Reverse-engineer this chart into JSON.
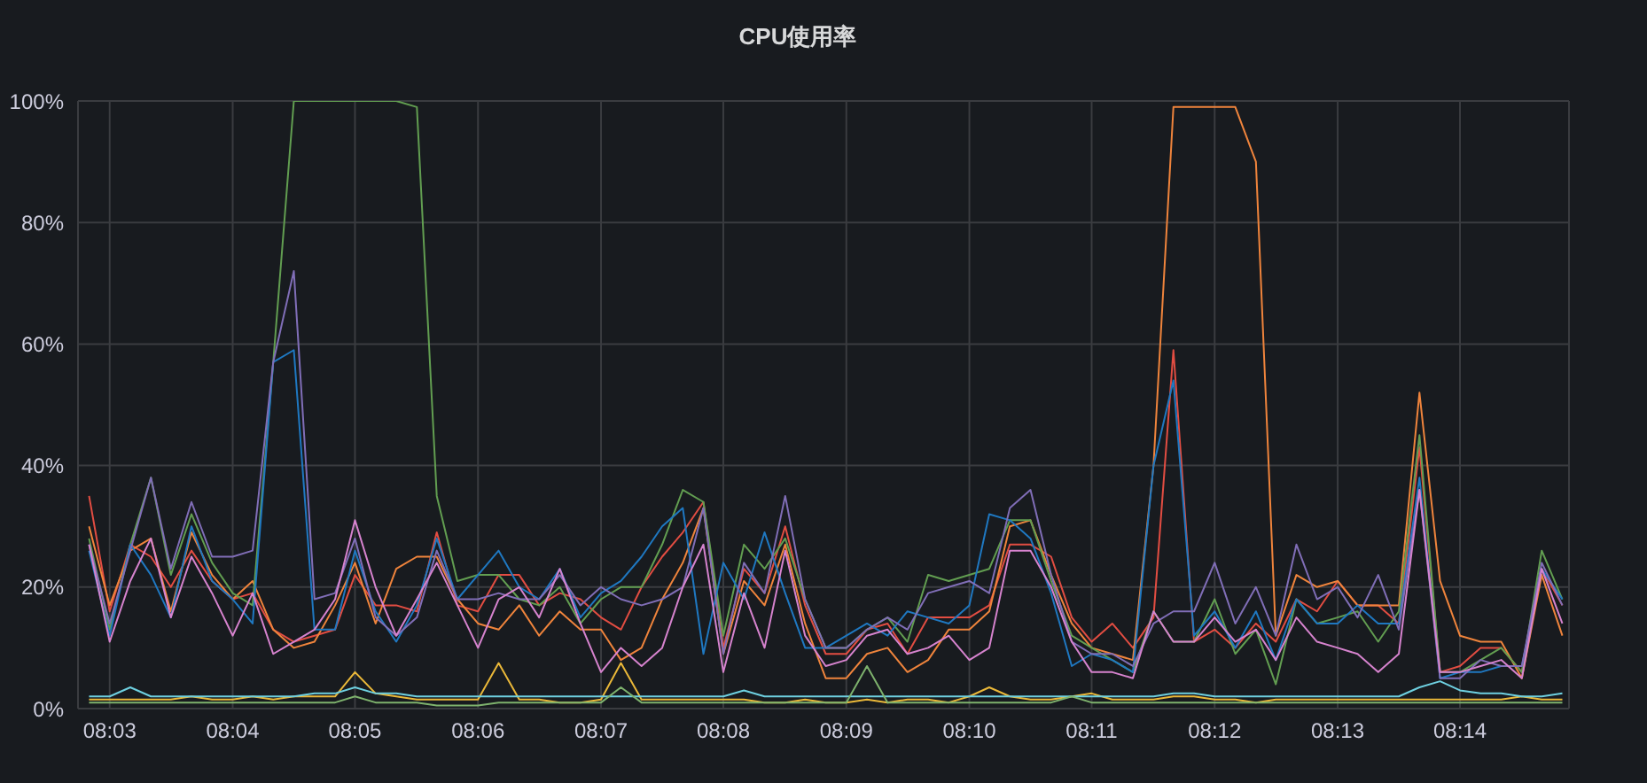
{
  "chart_data": {
    "type": "line",
    "title": "CPU使用率",
    "x": [
      8.0472,
      8.05,
      8.0528,
      8.0556,
      8.0583,
      8.0611,
      8.0639,
      8.0667,
      8.0694,
      8.0722,
      8.075,
      8.0778,
      8.0806,
      8.0833,
      8.0861,
      8.0889,
      8.0917,
      8.0944,
      8.0972,
      8.1,
      8.1028,
      8.1056,
      8.1083,
      8.1111,
      8.1139,
      8.1167,
      8.1194,
      8.1222,
      8.125,
      8.1278,
      8.1306,
      8.1333,
      8.1361,
      8.1389,
      8.1417,
      8.1444,
      8.1472,
      8.15,
      8.1528,
      8.1556,
      8.1583,
      8.1611,
      8.1639,
      8.1667,
      8.1694,
      8.1722,
      8.175,
      8.1778,
      8.1806,
      8.1833,
      8.1861,
      8.1889,
      8.1917,
      8.1944,
      8.1972,
      8.2,
      8.2028,
      8.2056,
      8.2083,
      8.2111,
      8.2139,
      8.2167,
      8.2194,
      8.2222,
      8.225,
      8.2278,
      8.2306,
      8.2333,
      8.2361,
      8.2389,
      8.2417,
      8.2444,
      8.2472
    ],
    "series": [
      {
        "color": "#e24d42",
        "values": [
          35,
          16,
          27,
          25,
          20,
          26,
          21,
          18,
          19,
          13,
          11,
          12,
          13,
          22,
          17,
          17,
          16,
          29,
          17,
          16,
          22,
          22,
          17,
          19,
          18,
          15,
          13,
          20,
          25,
          29,
          34,
          10,
          23,
          19,
          30,
          17,
          9,
          9,
          13,
          14,
          9,
          15,
          15,
          15,
          17,
          27,
          27,
          25,
          15,
          11,
          14,
          10,
          15,
          59,
          11,
          13,
          10,
          14,
          11,
          18,
          16,
          21,
          17,
          17,
          14,
          43,
          6,
          7,
          10,
          10,
          6,
          23,
          17
        ]
      },
      {
        "color": "#ef843c",
        "values": [
          30,
          17,
          26,
          28,
          16,
          29,
          22,
          18,
          21,
          13,
          10,
          11,
          17,
          24,
          14,
          23,
          25,
          25,
          18,
          14,
          13,
          17,
          12,
          16,
          13,
          13,
          8,
          10,
          18,
          24,
          33,
          9,
          21,
          17,
          27,
          14,
          5,
          5,
          9,
          10,
          6,
          8,
          13,
          13,
          16,
          30,
          31,
          22,
          14,
          10,
          9,
          8,
          40,
          99,
          99,
          99,
          99,
          90,
          12,
          22,
          20,
          21,
          17,
          17,
          17,
          52,
          21,
          12,
          11,
          11,
          5,
          22,
          12
        ]
      },
      {
        "color": "#629e51",
        "values": [
          28,
          13,
          27,
          38,
          22,
          32,
          24,
          19,
          17,
          57,
          100,
          100,
          100,
          100,
          100,
          100,
          99,
          35,
          21,
          22,
          22,
          18,
          17,
          20,
          14,
          18,
          20,
          20,
          27,
          36,
          34,
          12,
          27,
          23,
          28,
          18,
          10,
          10,
          13,
          15,
          11,
          22,
          21,
          22,
          23,
          31,
          31,
          21,
          12,
          10,
          8,
          6,
          16,
          11,
          11,
          18,
          9,
          13,
          4,
          18,
          14,
          15,
          16,
          11,
          16,
          45,
          6,
          6,
          8,
          10,
          6,
          26,
          18
        ]
      },
      {
        "color": "#1f78c1",
        "values": [
          26,
          12,
          27,
          22,
          15,
          30,
          21,
          18,
          14,
          57,
          59,
          13,
          13,
          26,
          16,
          11,
          17,
          28,
          18,
          22,
          26,
          20,
          18,
          23,
          15,
          19,
          21,
          25,
          30,
          33,
          9,
          24,
          18,
          29,
          19,
          10,
          10,
          12,
          14,
          12,
          16,
          15,
          14,
          17,
          32,
          31,
          28,
          19,
          7,
          9,
          8,
          6,
          40,
          54,
          12,
          16,
          10,
          16,
          8,
          18,
          14,
          14,
          17,
          14,
          14,
          38,
          5,
          6,
          6,
          7,
          7,
          23,
          18
        ]
      },
      {
        "color": "#806eb7",
        "values": [
          27,
          14,
          26,
          38,
          23,
          34,
          25,
          25,
          26,
          57,
          72,
          18,
          19,
          28,
          15,
          12,
          15,
          26,
          18,
          18,
          19,
          18,
          18,
          22,
          17,
          20,
          18,
          17,
          18,
          20,
          33,
          9,
          24,
          19,
          35,
          18,
          10,
          10,
          13,
          15,
          13,
          19,
          20,
          21,
          19,
          33,
          36,
          22,
          11,
          9,
          9,
          7,
          14,
          16,
          16,
          24,
          14,
          20,
          12,
          27,
          18,
          20,
          15,
          22,
          13,
          36,
          5,
          5,
          8,
          7,
          7,
          24,
          17
        ]
      },
      {
        "color": "#d683ce",
        "values": [
          27,
          11,
          21,
          28,
          15,
          25,
          19,
          12,
          19,
          9,
          11,
          13,
          18,
          31,
          20,
          12,
          18,
          24,
          17,
          10,
          18,
          20,
          15,
          23,
          14,
          6,
          10,
          7,
          10,
          20,
          27,
          6,
          19,
          10,
          26,
          12,
          7,
          8,
          12,
          13,
          9,
          10,
          12,
          8,
          10,
          26,
          26,
          20,
          11,
          6,
          6,
          5,
          16,
          11,
          11,
          15,
          11,
          13,
          8,
          15,
          11,
          10,
          9,
          6,
          9,
          36,
          6,
          6,
          7,
          8,
          5,
          23,
          14
        ]
      },
      {
        "color": "#eab839",
        "values": [
          1.5,
          1.5,
          1.5,
          1.5,
          1.5,
          2,
          1.5,
          1.5,
          2,
          1.5,
          2,
          2,
          2,
          6,
          2.5,
          2,
          1.5,
          1.5,
          1.5,
          1.5,
          7.5,
          1.5,
          1.5,
          1,
          1,
          1.5,
          7.5,
          1.5,
          1.5,
          1.5,
          1.5,
          1.5,
          1.5,
          1,
          1,
          1.5,
          1,
          1,
          1.5,
          1,
          1.5,
          1.5,
          1,
          2,
          3.5,
          2,
          1.5,
          1.5,
          2,
          2.5,
          1.5,
          1.5,
          1.5,
          2,
          2,
          1.5,
          1.5,
          1,
          1.5,
          1.5,
          1.5,
          1.5,
          1.5,
          1.5,
          1.5,
          1.5,
          1.5,
          1.5,
          1.5,
          1.5,
          2,
          1.5,
          1.5
        ]
      },
      {
        "color": "#6ed0e0",
        "values": [
          2,
          2,
          3.5,
          2,
          2,
          2,
          2,
          2,
          2,
          2,
          2,
          2.5,
          2.5,
          3.5,
          2.5,
          2.5,
          2,
          2,
          2,
          2,
          2,
          2,
          2,
          2,
          2,
          2,
          2,
          2,
          2,
          2,
          2,
          2,
          3,
          2,
          2,
          2,
          2,
          2,
          2,
          2,
          2,
          2,
          2,
          2,
          2,
          2,
          2,
          2,
          2,
          2,
          2,
          2,
          2,
          2.5,
          2.5,
          2,
          2,
          2,
          2,
          2,
          2,
          2,
          2,
          2,
          2,
          3.5,
          4.5,
          3,
          2.5,
          2.5,
          2,
          2,
          2.5
        ]
      },
      {
        "color": "#7eb26d",
        "values": [
          1,
          1,
          1,
          1,
          1,
          1,
          1,
          1,
          1,
          1,
          1,
          1,
          1,
          2,
          1,
          1,
          1,
          0.5,
          0.5,
          0.5,
          1,
          1,
          1,
          1,
          1,
          1,
          3.5,
          1,
          1,
          1,
          1,
          1,
          1,
          1,
          1,
          1,
          1,
          1,
          7,
          1,
          1,
          1,
          1,
          1,
          1,
          1,
          1,
          1,
          2,
          1,
          1,
          1,
          1,
          1,
          1,
          1,
          1,
          1,
          1,
          1,
          1,
          1,
          1,
          1,
          1,
          1,
          1,
          1,
          1,
          1,
          1,
          1,
          1
        ]
      }
    ],
    "xlim": [
      8.0457,
      8.2481
    ],
    "xticks": [
      {
        "value": 8.05,
        "label": "08:03"
      },
      {
        "value": 8.0667,
        "label": "08:04"
      },
      {
        "value": 8.0833,
        "label": "08:05"
      },
      {
        "value": 8.1,
        "label": "08:06"
      },
      {
        "value": 8.1167,
        "label": "08:07"
      },
      {
        "value": 8.1333,
        "label": "08:08"
      },
      {
        "value": 8.15,
        "label": "08:09"
      },
      {
        "value": 8.1667,
        "label": "08:10"
      },
      {
        "value": 8.1833,
        "label": "08:11"
      },
      {
        "value": 8.2,
        "label": "08:12"
      },
      {
        "value": 8.2167,
        "label": "08:13"
      },
      {
        "value": 8.2333,
        "label": "08:14"
      }
    ],
    "ylim": [
      0,
      100
    ],
    "yticks": [
      {
        "value": 0,
        "label": "0%"
      },
      {
        "value": 20,
        "label": "20%"
      },
      {
        "value": 40,
        "label": "40%"
      },
      {
        "value": 60,
        "label": "60%"
      },
      {
        "value": 80,
        "label": "80%"
      },
      {
        "value": 100,
        "label": "100%"
      }
    ],
    "grid": true,
    "legend": false,
    "marker": "none",
    "line_style": "solid"
  }
}
